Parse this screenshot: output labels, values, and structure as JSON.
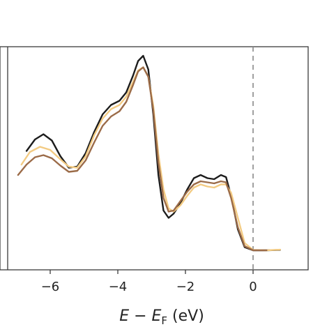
{
  "chart_data": {
    "type": "line",
    "xlabel": {
      "main": "E − E",
      "sub": "F",
      "unit": " (eV)"
    },
    "ylabel": "",
    "xlim": [
      -7.4,
      1.7
    ],
    "ylim": [
      0,
      1
    ],
    "xticks": [
      -6,
      -4,
      -2,
      0
    ],
    "xtick_labels": [
      "−6",
      "−4",
      "−2",
      "0"
    ],
    "fermi_level": {
      "x": 0,
      "style": "dashed",
      "color": "#888888"
    },
    "grid": false,
    "legend": "none",
    "series": [
      {
        "color": "#1c1c1c",
        "points": [
          [
            -6.7,
            0.485
          ],
          [
            -6.45,
            0.54
          ],
          [
            -6.2,
            0.565
          ],
          [
            -5.95,
            0.535
          ],
          [
            -5.7,
            0.46
          ],
          [
            -5.45,
            0.405
          ],
          [
            -5.2,
            0.41
          ],
          [
            -4.95,
            0.475
          ],
          [
            -4.7,
            0.575
          ],
          [
            -4.45,
            0.66
          ],
          [
            -4.2,
            0.705
          ],
          [
            -3.95,
            0.725
          ],
          [
            -3.75,
            0.765
          ],
          [
            -3.55,
            0.845
          ],
          [
            -3.4,
            0.915
          ],
          [
            -3.25,
            0.94
          ],
          [
            -3.1,
            0.875
          ],
          [
            -2.95,
            0.66
          ],
          [
            -2.8,
            0.37
          ],
          [
            -2.65,
            0.2
          ],
          [
            -2.5,
            0.165
          ],
          [
            -2.35,
            0.185
          ],
          [
            -2.15,
            0.235
          ],
          [
            -1.95,
            0.3
          ],
          [
            -1.75,
            0.355
          ],
          [
            -1.55,
            0.37
          ],
          [
            -1.35,
            0.355
          ],
          [
            -1.15,
            0.35
          ],
          [
            -0.95,
            0.37
          ],
          [
            -0.8,
            0.36
          ],
          [
            -0.65,
            0.27
          ],
          [
            -0.45,
            0.11
          ],
          [
            -0.25,
            0.025
          ],
          [
            0,
            0.01
          ],
          [
            0.4,
            0.01
          ],
          [
            0.8,
            0.012
          ]
        ]
      },
      {
        "color": "#f3cb83",
        "points": [
          [
            -6.85,
            0.42
          ],
          [
            -6.6,
            0.48
          ],
          [
            -6.3,
            0.505
          ],
          [
            -6.0,
            0.49
          ],
          [
            -5.7,
            0.445
          ],
          [
            -5.45,
            0.41
          ],
          [
            -5.2,
            0.405
          ],
          [
            -4.95,
            0.46
          ],
          [
            -4.7,
            0.56
          ],
          [
            -4.45,
            0.64
          ],
          [
            -4.2,
            0.685
          ],
          [
            -3.95,
            0.705
          ],
          [
            -3.75,
            0.745
          ],
          [
            -3.55,
            0.815
          ],
          [
            -3.4,
            0.87
          ],
          [
            -3.25,
            0.885
          ],
          [
            -3.1,
            0.84
          ],
          [
            -2.95,
            0.7
          ],
          [
            -2.8,
            0.47
          ],
          [
            -2.65,
            0.3
          ],
          [
            -2.5,
            0.21
          ],
          [
            -2.35,
            0.195
          ],
          [
            -2.15,
            0.225
          ],
          [
            -1.95,
            0.27
          ],
          [
            -1.75,
            0.31
          ],
          [
            -1.55,
            0.325
          ],
          [
            -1.35,
            0.315
          ],
          [
            -1.15,
            0.31
          ],
          [
            -0.95,
            0.325
          ],
          [
            -0.8,
            0.325
          ],
          [
            -0.65,
            0.285
          ],
          [
            -0.45,
            0.165
          ],
          [
            -0.25,
            0.045
          ],
          [
            0,
            0.012
          ],
          [
            0.4,
            0.01
          ],
          [
            0.8,
            0.013
          ]
        ]
      },
      {
        "color": "#9b6b48",
        "points": [
          [
            -6.95,
            0.37
          ],
          [
            -6.7,
            0.42
          ],
          [
            -6.45,
            0.455
          ],
          [
            -6.2,
            0.465
          ],
          [
            -5.95,
            0.45
          ],
          [
            -5.7,
            0.415
          ],
          [
            -5.45,
            0.385
          ],
          [
            -5.2,
            0.39
          ],
          [
            -4.95,
            0.44
          ],
          [
            -4.7,
            0.525
          ],
          [
            -4.45,
            0.605
          ],
          [
            -4.2,
            0.65
          ],
          [
            -3.95,
            0.675
          ],
          [
            -3.75,
            0.72
          ],
          [
            -3.55,
            0.8
          ],
          [
            -3.4,
            0.865
          ],
          [
            -3.25,
            0.885
          ],
          [
            -3.1,
            0.84
          ],
          [
            -2.95,
            0.68
          ],
          [
            -2.8,
            0.43
          ],
          [
            -2.65,
            0.26
          ],
          [
            -2.5,
            0.195
          ],
          [
            -2.35,
            0.2
          ],
          [
            -2.15,
            0.245
          ],
          [
            -1.95,
            0.29
          ],
          [
            -1.75,
            0.325
          ],
          [
            -1.55,
            0.34
          ],
          [
            -1.35,
            0.335
          ],
          [
            -1.15,
            0.33
          ],
          [
            -0.95,
            0.34
          ],
          [
            -0.8,
            0.335
          ],
          [
            -0.65,
            0.26
          ],
          [
            -0.45,
            0.12
          ],
          [
            -0.25,
            0.03
          ],
          [
            0,
            0.01
          ],
          [
            0.4,
            0.01
          ]
        ]
      }
    ]
  }
}
